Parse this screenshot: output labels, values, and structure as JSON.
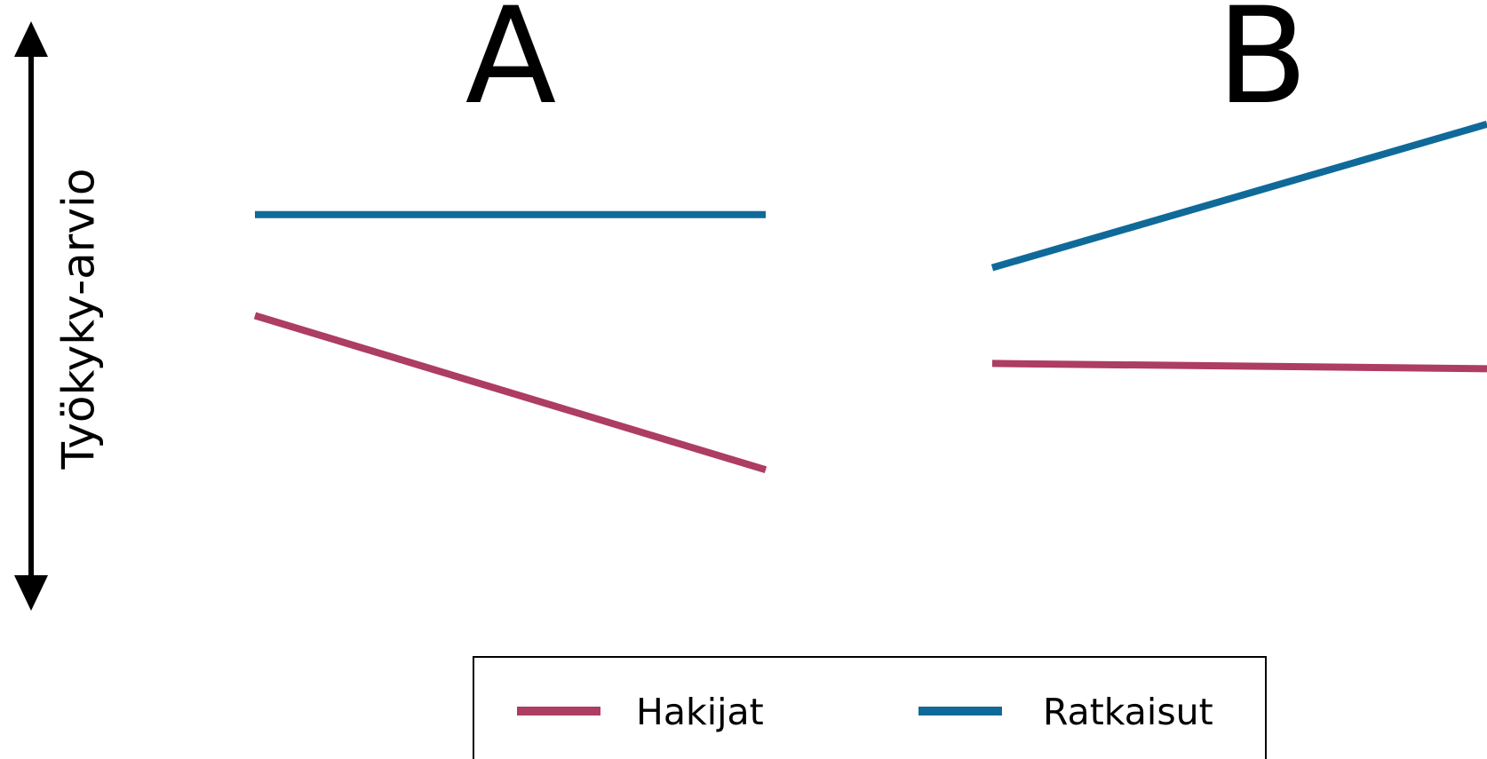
{
  "chart_data": {
    "type": "line",
    "ylabel": "Työkyky-arvio",
    "panels": [
      {
        "label": "A",
        "series": [
          {
            "name": "Ratkaisut",
            "values": [
              0.69,
              0.69
            ]
          },
          {
            "name": "Hakijat",
            "values": [
              0.5,
              0.21
            ]
          }
        ]
      },
      {
        "label": "B",
        "series": [
          {
            "name": "Ratkaisut",
            "values": [
              0.59,
              0.86
            ]
          },
          {
            "name": "Hakijat",
            "values": [
              0.41,
              0.4
            ]
          }
        ]
      }
    ],
    "legend": [
      "Hakijat",
      "Ratkaisut"
    ],
    "legend_position": "bottom",
    "colors": {
      "Hakijat": "#ad3d62",
      "Ratkaisut": "#0f6a99"
    },
    "grid": false
  }
}
